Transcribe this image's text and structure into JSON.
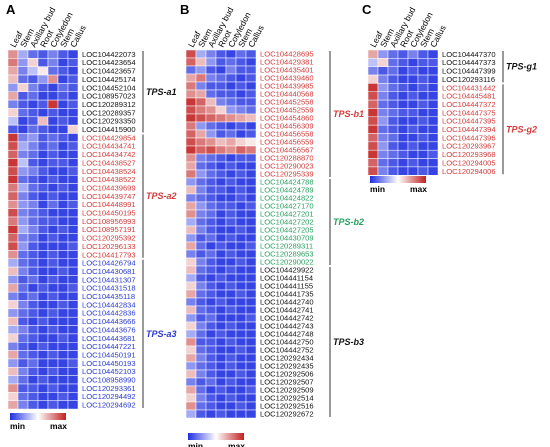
{
  "colors": {
    "min": "#1f2fe0",
    "mid": "#ffffff",
    "max": "#c22020",
    "group_red": "#d63a3a",
    "group_green": "#28a060",
    "group_blue": "#2a3ad0",
    "group_black": "#111111"
  },
  "chart_data": [
    {
      "type": "heatmap",
      "panel": "A",
      "columns": [
        "Leaf",
        "Stem",
        "Axillary bud",
        "Root",
        "Cotyledon",
        "Stem",
        "Callus"
      ],
      "legend": {
        "min": "min",
        "max": "max"
      },
      "groups": [
        {
          "label": "TPS-a1",
          "color": "black",
          "rows": [
            "LOC104422073",
            "LOC104423654",
            "LOC104423657",
            "LOC104425174",
            "LOC104452104",
            "LOC108957023",
            "LOC120289312",
            "LOC120289357",
            "LOC120293350",
            "LOC104415900"
          ]
        },
        {
          "label": "TPS-a2",
          "color": "red",
          "rows": [
            "LOC104429854",
            "LOC104434741",
            "LOC104434742",
            "LOC104438527",
            "LOC104438524",
            "LOC104438522",
            "LOC104439699",
            "LOC104439747",
            "LOC104448991",
            "LOC104450195",
            "LOC108956993",
            "LOC108957191",
            "LOC120295392",
            "LOC120296133",
            "LOC104417793"
          ]
        },
        {
          "label": "TPS-a3",
          "color": "blue",
          "rows": [
            "LOC104426794",
            "LOC104430681",
            "LOC104431307",
            "LOC104431518",
            "LOC104435118",
            "LOC104442834",
            "LOC104442836",
            "LOC104443666",
            "LOC104443676",
            "LOC104443681",
            "LOC104447221",
            "LOC104450191",
            "LOC104450193",
            "LOC104452103",
            "LOC108958990",
            "LOC120293361",
            "LOC120294492",
            "LOC120294692"
          ]
        }
      ],
      "values": [
        [
          0.5,
          -0.4,
          -0.7,
          -0.8,
          -0.6,
          -0.8,
          -0.9
        ],
        [
          0.6,
          -0.5,
          0.2,
          -0.8,
          -0.6,
          -0.9,
          -0.8
        ],
        [
          0.4,
          -0.6,
          -0.3,
          0.1,
          -0.7,
          -0.8,
          -0.9
        ],
        [
          0.3,
          -0.7,
          -0.8,
          -0.5,
          0.5,
          -0.9,
          -0.8
        ],
        [
          -0.5,
          0.2,
          -0.6,
          -0.8,
          -0.9,
          -0.7,
          -0.8
        ],
        [
          0.4,
          -0.8,
          -0.7,
          -0.9,
          -0.9,
          -0.8,
          -0.9
        ],
        [
          -0.6,
          -0.8,
          -0.9,
          -0.8,
          0.9,
          -0.9,
          -0.8
        ],
        [
          0.2,
          -0.7,
          -0.8,
          -0.9,
          -0.8,
          -0.9,
          -0.9
        ],
        [
          -0.3,
          -0.9,
          -0.8,
          0.3,
          -0.9,
          -0.8,
          -0.9
        ],
        [
          -0.8,
          -0.9,
          -0.7,
          -0.8,
          -0.9,
          -0.9,
          0.2
        ],
        [
          0.9,
          -0.6,
          -0.5,
          -0.8,
          -0.7,
          -0.8,
          -0.9
        ],
        [
          0.8,
          -0.4,
          -0.6,
          -0.8,
          -0.7,
          -0.9,
          -0.8
        ],
        [
          0.7,
          -0.6,
          -0.7,
          -0.9,
          -0.8,
          -0.9,
          -0.9
        ],
        [
          0.9,
          -0.3,
          -0.8,
          -0.9,
          -0.8,
          -0.8,
          -0.9
        ],
        [
          0.8,
          -0.5,
          -0.6,
          -0.8,
          -0.9,
          -0.9,
          -0.8
        ],
        [
          0.9,
          -0.7,
          -0.8,
          -0.9,
          -0.8,
          -0.9,
          -0.9
        ],
        [
          0.6,
          -0.4,
          -0.7,
          -0.8,
          -0.9,
          -0.8,
          -0.9
        ],
        [
          0.7,
          -0.6,
          -0.8,
          -0.9,
          -0.8,
          -0.9,
          -0.9
        ],
        [
          0.5,
          -0.5,
          -0.6,
          -0.9,
          -0.7,
          -0.9,
          -0.8
        ],
        [
          0.8,
          -0.6,
          -0.7,
          -0.8,
          -0.9,
          -0.9,
          -0.9
        ],
        [
          0.6,
          -0.5,
          -0.7,
          -0.8,
          -0.8,
          -0.9,
          -0.9
        ],
        [
          0.9,
          -0.4,
          -0.6,
          -0.8,
          -0.9,
          -0.8,
          -0.9
        ],
        [
          0.7,
          -0.6,
          -0.7,
          -0.9,
          -0.8,
          -0.9,
          -0.9
        ],
        [
          0.8,
          -0.5,
          -0.8,
          -0.9,
          -0.9,
          -0.9,
          -0.8
        ],
        [
          0.5,
          -0.7,
          -0.8,
          -0.9,
          -0.8,
          -0.9,
          -0.9
        ],
        [
          -0.4,
          -0.7,
          -0.8,
          -0.9,
          -0.8,
          -0.9,
          -0.9
        ],
        [
          0.3,
          -0.6,
          -0.8,
          -0.9,
          -0.9,
          -0.8,
          -0.9
        ],
        [
          -0.5,
          -0.8,
          -0.7,
          -0.9,
          -0.8,
          -0.9,
          -0.9
        ],
        [
          0.4,
          -0.7,
          -0.9,
          -0.8,
          -0.9,
          -0.9,
          -0.8
        ],
        [
          -0.6,
          -0.8,
          -0.7,
          -0.9,
          -0.8,
          -0.9,
          -0.9
        ],
        [
          0.2,
          -0.6,
          -0.8,
          -0.9,
          -0.9,
          -0.8,
          -0.9
        ],
        [
          -0.5,
          -0.7,
          -0.8,
          -0.9,
          -0.8,
          -0.9,
          -0.9
        ],
        [
          0.3,
          -0.8,
          -0.9,
          -0.8,
          -0.9,
          -0.9,
          -0.9
        ],
        [
          -0.4,
          -0.6,
          -0.8,
          -0.9,
          -0.8,
          -0.9,
          -0.9
        ],
        [
          0.2,
          -0.7,
          -0.8,
          -0.9,
          -0.9,
          -0.8,
          -0.9
        ],
        [
          -0.6,
          -0.8,
          -0.9,
          -0.8,
          -0.9,
          -0.9,
          -0.9
        ],
        [
          0.4,
          -0.7,
          -0.8,
          -0.9,
          -0.8,
          -0.9,
          -0.9
        ],
        [
          -0.5,
          -0.8,
          -0.7,
          -0.9,
          -0.9,
          -0.9,
          -0.8
        ],
        [
          0.3,
          -0.6,
          -0.8,
          -0.9,
          -0.8,
          -0.9,
          -0.9
        ],
        [
          -0.4,
          -0.7,
          -0.9,
          -0.8,
          -0.9,
          -0.9,
          -0.9
        ],
        [
          0.5,
          -0.8,
          -0.8,
          -0.9,
          -0.8,
          -0.9,
          -0.9
        ],
        [
          0.2,
          -0.7,
          -0.8,
          -0.9,
          -0.9,
          -0.8,
          -0.9
        ],
        [
          0.4,
          -0.6,
          -0.8,
          -0.9,
          -0.8,
          -0.9,
          -0.9
        ]
      ]
    },
    {
      "type": "heatmap",
      "panel": "B",
      "columns": [
        "Leaf",
        "Stem",
        "Axillary bud",
        "Root",
        "Cotyledon",
        "Stem",
        "Callus"
      ],
      "legend": {
        "min": "min",
        "max": "max"
      },
      "groups": [
        {
          "label": "TPS-b1",
          "color": "red",
          "rows": [
            "LOC104428695",
            "LOC104429381",
            "LOC104435401",
            "LOC104439460",
            "LOC104439985",
            "LOC104440568",
            "LOC104452558",
            "LOC104452559",
            "LOC104454860",
            "LOC104456309",
            "LOC104456558",
            "LOC104456559",
            "LOC104456567",
            "LOC120288870",
            "LOC120290023",
            "LOC120295339"
          ]
        },
        {
          "label": "TPS-b2",
          "color": "green",
          "rows": [
            "LOC104424788",
            "LOC104424789",
            "LOC104424822",
            "LOC104427170",
            "LOC104427201",
            "LOC104427202",
            "LOC104427205",
            "LOC104430709",
            "LOC120289311",
            "LOC120289653",
            "LOC120290022"
          ]
        },
        {
          "label": "TPS-b3",
          "color": "black",
          "rows": [
            "LOC104429922",
            "LOC104441154",
            "LOC104441155",
            "LOC104441735",
            "LOC104442740",
            "LOC104442741",
            "LOC104442742",
            "LOC104442743",
            "LOC104442748",
            "LOC104442750",
            "LOC104442752",
            "LOC120292434",
            "LOC120292435",
            "LOC120292506",
            "LOC120292507",
            "LOC120292509",
            "LOC120292514",
            "LOC120292516",
            "LOC120292672"
          ]
        }
      ],
      "values": [
        [
          0.8,
          -0.4,
          -0.6,
          -0.8,
          -0.9,
          -0.7,
          -0.8
        ],
        [
          0.7,
          0.3,
          -0.5,
          -0.8,
          -0.7,
          -0.8,
          -0.9
        ],
        [
          -0.7,
          -0.5,
          -0.8,
          -0.9,
          -0.6,
          -0.8,
          -0.8
        ],
        [
          0.4,
          0.6,
          -0.6,
          -0.7,
          -0.8,
          -0.9,
          -0.8
        ],
        [
          0.6,
          -0.6,
          -0.8,
          -0.8,
          -0.9,
          -0.8,
          -0.9
        ],
        [
          0.5,
          0.4,
          -0.7,
          -0.8,
          -0.8,
          -0.9,
          -0.8
        ],
        [
          0.9,
          0.7,
          0.3,
          -0.6,
          -0.7,
          -0.8,
          -0.8
        ],
        [
          0.8,
          0.6,
          0.5,
          0.2,
          -0.5,
          -0.6,
          -0.7
        ],
        [
          0.9,
          0.8,
          0.7,
          0.6,
          0.5,
          0.4,
          0.3
        ],
        [
          0.6,
          -0.5,
          -0.7,
          -0.8,
          -0.9,
          -0.8,
          -0.9
        ],
        [
          0.7,
          0.4,
          -0.5,
          -0.8,
          -0.7,
          -0.9,
          -0.8
        ],
        [
          0.8,
          0.6,
          0.5,
          0.3,
          0.4,
          0.2,
          0.1
        ],
        [
          0.9,
          0.7,
          0.8,
          0.6,
          0.5,
          0.7,
          0.6
        ],
        [
          0.5,
          -0.6,
          -0.7,
          -0.8,
          -0.9,
          -0.8,
          -0.8
        ],
        [
          0.4,
          -0.7,
          -0.8,
          -0.9,
          -0.8,
          -0.9,
          -0.9
        ],
        [
          0.6,
          -0.5,
          -0.7,
          -0.8,
          -0.9,
          -0.8,
          -0.9
        ],
        [
          -0.5,
          -0.7,
          -0.8,
          -0.9,
          -0.8,
          -0.9,
          -0.9
        ],
        [
          0.3,
          -0.6,
          -0.8,
          -0.8,
          -0.9,
          -0.8,
          -0.9
        ],
        [
          -0.6,
          -0.7,
          -0.8,
          -0.9,
          -0.9,
          -0.8,
          -0.9
        ],
        [
          0.4,
          -0.5,
          -0.7,
          -0.8,
          -0.8,
          -0.9,
          -0.8
        ],
        [
          0.5,
          -0.6,
          -0.7,
          -0.9,
          -0.8,
          -0.9,
          -0.9
        ],
        [
          -0.4,
          -0.7,
          -0.8,
          -0.9,
          -0.8,
          -0.9,
          -0.9
        ],
        [
          0.3,
          -0.6,
          -0.8,
          -0.9,
          -0.9,
          -0.8,
          -0.9
        ],
        [
          -0.5,
          -0.8,
          -0.7,
          -0.9,
          -0.8,
          -0.9,
          -0.9
        ],
        [
          0.4,
          -0.7,
          -0.9,
          -0.8,
          -0.9,
          -0.9,
          -0.8
        ],
        [
          -0.6,
          -0.8,
          -0.7,
          -0.9,
          -0.8,
          -0.9,
          -0.9
        ],
        [
          0.2,
          -0.6,
          -0.8,
          -0.9,
          -0.9,
          -0.8,
          -0.9
        ],
        [
          0.3,
          -0.7,
          -0.8,
          -0.9,
          -0.8,
          -0.9,
          -0.9
        ],
        [
          -0.4,
          -0.8,
          -0.9,
          -0.8,
          -0.9,
          -0.9,
          -0.9
        ],
        [
          0.2,
          -0.6,
          -0.8,
          -0.9,
          -0.8,
          -0.9,
          -0.9
        ],
        [
          0.4,
          -0.7,
          -0.8,
          -0.9,
          -0.9,
          -0.8,
          -0.9
        ],
        [
          -0.6,
          -0.8,
          -0.9,
          -0.8,
          -0.9,
          -0.9,
          -0.9
        ],
        [
          0.3,
          -0.7,
          -0.8,
          -0.9,
          -0.8,
          -0.9,
          -0.9
        ],
        [
          -0.5,
          -0.8,
          -0.7,
          -0.9,
          -0.9,
          -0.9,
          -0.8
        ],
        [
          0.2,
          -0.6,
          -0.8,
          -0.9,
          -0.8,
          -0.9,
          -0.9
        ],
        [
          -0.4,
          -0.7,
          -0.9,
          -0.8,
          -0.9,
          -0.9,
          -0.9
        ],
        [
          0.5,
          -0.8,
          -0.8,
          -0.9,
          -0.8,
          -0.9,
          -0.9
        ],
        [
          0.2,
          -0.7,
          -0.8,
          -0.9,
          -0.9,
          -0.8,
          -0.9
        ],
        [
          0.4,
          -0.6,
          -0.8,
          -0.9,
          -0.8,
          -0.9,
          -0.9
        ],
        [
          -0.5,
          -0.7,
          -0.8,
          -0.9,
          -0.8,
          -0.9,
          -0.9
        ],
        [
          0.3,
          -0.6,
          -0.8,
          -0.9,
          -0.9,
          -0.8,
          -0.9
        ],
        [
          -0.6,
          -0.8,
          -0.7,
          -0.9,
          -0.8,
          -0.9,
          -0.9
        ],
        [
          0.4,
          -0.7,
          -0.9,
          -0.8,
          -0.9,
          -0.9,
          -0.8
        ],
        [
          0.2,
          -0.6,
          -0.8,
          -0.9,
          -0.8,
          -0.9,
          -0.9
        ],
        [
          0.5,
          -0.7,
          -0.8,
          -0.9,
          -0.9,
          -0.8,
          -0.9
        ],
        [
          -0.4,
          -0.8,
          -0.9,
          -0.8,
          -0.9,
          -0.9,
          -0.9
        ]
      ]
    },
    {
      "type": "heatmap",
      "panel": "C",
      "columns": [
        "Leaf",
        "Stem",
        "Axillary bud",
        "Root",
        "Cotyledon",
        "Stem",
        "Callus"
      ],
      "legend": {
        "min": "min",
        "max": "max"
      },
      "groups": [
        {
          "label": "TPS-g1",
          "color": "black",
          "rows": [
            "LOC104447370",
            "LOC104447373",
            "LOC104447399",
            "LOC120293116"
          ]
        },
        {
          "label": "TPS-g2",
          "color": "red",
          "rows": [
            "LOC104431442",
            "LOC104445481",
            "LOC104447372",
            "LOC104447375",
            "LOC104447395",
            "LOC104447394",
            "LOC104447396",
            "LOC120293967",
            "LOC120293968",
            "LOC120294005",
            "LOC120294006"
          ]
        }
      ],
      "values": [
        [
          0.4,
          -0.5,
          -0.7,
          -0.8,
          -0.6,
          -0.8,
          -0.9
        ],
        [
          -0.3,
          0.2,
          -0.7,
          -0.8,
          -0.9,
          -0.8,
          -0.8
        ],
        [
          -0.6,
          -0.8,
          -0.7,
          -0.9,
          -0.8,
          -0.9,
          -0.9
        ],
        [
          0.2,
          -0.6,
          -0.8,
          -0.9,
          -0.9,
          -0.8,
          -0.9
        ],
        [
          0.9,
          -0.5,
          -0.7,
          -0.8,
          -0.9,
          -0.8,
          -0.9
        ],
        [
          0.8,
          -0.6,
          -0.8,
          -0.9,
          -0.8,
          -0.9,
          -0.9
        ],
        [
          0.7,
          -0.7,
          -0.8,
          -0.9,
          -0.9,
          -0.8,
          -0.9
        ],
        [
          0.9,
          -0.6,
          -0.7,
          -0.8,
          -0.8,
          -0.9,
          -0.9
        ],
        [
          0.8,
          -0.5,
          -0.8,
          -0.9,
          -0.9,
          -0.8,
          -0.9
        ],
        [
          0.9,
          -0.7,
          -0.8,
          -0.9,
          -0.8,
          -0.9,
          -0.9
        ],
        [
          0.7,
          -0.6,
          -0.7,
          -0.9,
          -0.9,
          -0.8,
          -0.9
        ],
        [
          0.8,
          -0.5,
          -0.8,
          -0.9,
          -0.8,
          -0.9,
          -0.9
        ],
        [
          0.9,
          -0.6,
          -0.7,
          -0.8,
          -0.9,
          -0.9,
          -0.8
        ],
        [
          0.7,
          -0.7,
          -0.8,
          -0.9,
          -0.8,
          -0.9,
          -0.9
        ],
        [
          0.8,
          -0.6,
          -0.8,
          -0.9,
          -0.9,
          -0.8,
          -0.9
        ]
      ]
    }
  ]
}
